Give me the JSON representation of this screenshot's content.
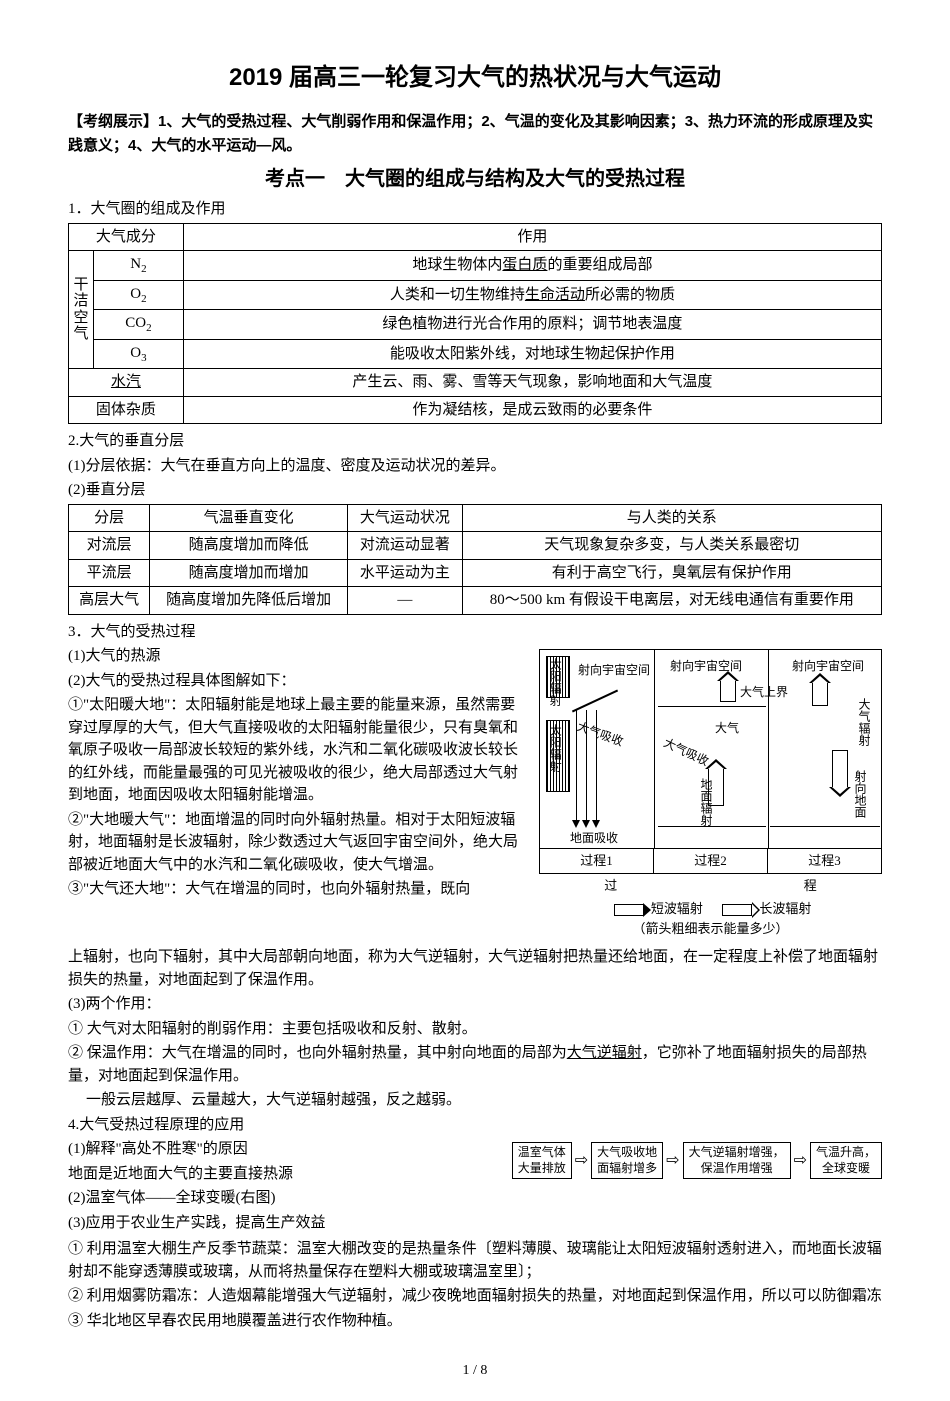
{
  "title": "2019 届高三一轮复习大气的热状况与大气运动",
  "exam_outline": "【考纲展示】1、大气的受热过程、大气削弱作用和保温作用；2、气温的变化及其影响因素；3、热力环流的形成原理及实践意义；4、大气的水平运动—风。",
  "section1_title": "考点一　大气圈的组成与结构及大气的受热过程",
  "p1": "1．大气圈的组成及作用",
  "table1": {
    "head": [
      "大气成分",
      "作用"
    ],
    "group_label": "干洁空气",
    "rows": [
      {
        "comp": "N₂",
        "use": "地球生物体内蛋白质的重要组成局部",
        "u": true
      },
      {
        "comp": "O₂",
        "use": "人类和一切生物维持生命活动所必需的物质",
        "u": true
      },
      {
        "comp": "CO₂",
        "use": "绿色植物进行光合作用的原料；调节地表温度"
      },
      {
        "comp": "O₃",
        "use": "能吸收太阳紫外线，对地球生物起保护作用"
      }
    ],
    "row5": {
      "comp": "水汽",
      "use": "产生云、雨、雾、雪等天气现象，影响地面和大气温度"
    },
    "row6": {
      "comp": "固体杂质",
      "use": "作为凝结核，是成云致雨的必要条件"
    }
  },
  "p2a": "2.大气的垂直分层",
  "p2b": "(1)分层依据：大气在垂直方向上的温度、密度及运动状况的差异。",
  "p2c": "(2)垂直分层",
  "table2": {
    "head": [
      "分层",
      "气温垂直变化",
      "大气运动状况",
      "与人类的关系"
    ],
    "rows": [
      [
        "对流层",
        "随高度增加而降低",
        "对流运动显著",
        "天气现象复杂多变，与人类关系最密切"
      ],
      [
        "平流层",
        "随高度增加而增加",
        "水平运动为主",
        "有利于高空飞行，臭氧层有保护作用"
      ],
      [
        "高层大气",
        "随高度增加先降低后增加",
        "—",
        "80～500 km 有假设干电离层，对无线电通信有重要作用"
      ]
    ]
  },
  "p3": "3．大气的受热过程",
  "p3a": "(1)大气的热源",
  "p3b": "(2)大气的受热过程具体图解如下：",
  "p3c": "①\"太阳暖大地\"：太阳辐射能是地球上最主要的能量来源，虽然需要穿过厚厚的大气，但大气直接吸收的太阳辐射能量很少，只有臭氧和氧原子吸收一局部波长较短的紫外线，水汽和二氧化碳吸收波长较长的红外线，而能量最强的可见光被吸收的很少，绝大局部透过大气射到地面，地面因吸收太阳辐射能增温。",
  "p3d": "②\"大地暖大气\"：地面增温的同时向外辐射热量。相对于太阳短波辐射，地面辐射是长波辐射，除少数透过大气返回宇宙空间外，绝大局部被近地面大气中的水汽和二氧化碳吸收，使大气增温。",
  "p3e": "③\"大气还大地\"：大气在增温的同时，也向外辐射热量，既向",
  "p3f": "上辐射，也向下辐射，其中大局部朝向地面，称为大气逆辐射，大气逆辐射把热量还给地面，在一定程度上补偿了地面辐射损失的热量，对地面起到了保温作用。",
  "p3g": "(3)两个作用：",
  "p3h": "① 大气对太阳辐射的削弱作用：主要包括吸收和反射、散射。",
  "p3i_a": "② 保温作用：大气在增温的同时，也向外辐射热量，其中射向地面的局部为",
  "p3i_u": "大气逆辐射",
  "p3i_b": "，它弥补了地面辐射损失的局部热量，对地面起到保温作用。",
  "p3j": "一般云层越厚、云量越大，大气逆辐射越强，反之越弱。",
  "p4": "4.大气受热过程原理的应用",
  "p4a": "(1)解释\"高处不胜寒\"的原因",
  "p4b": "地面是近地面大气的主要直接热源",
  "p4c": "(2)温室气体——全球变暖(右图)",
  "p4d": "(3)应用于农业生产实践，提高生产效益",
  "p4e": "① 利用温室大棚生产反季节蔬菜：温室大棚改变的是热量条件〔塑料薄膜、玻璃能让太阳短波辐射透射进入，而地面长波辐射却不能穿透薄膜或玻璃，从而将热量保存在塑料大棚或玻璃温室里〕；",
  "p4f": "② 利用烟雾防霜冻：人造烟幕能增强大气逆辐射，减少夜晚地面辐射损失的热量，对地面起到保温作用，所以可以防御霜冻",
  "p4g": "③ 华北地区早春农民用地膜覆盖进行农作物种植。",
  "diagram": {
    "proc1": "过程1",
    "proc2": "过程2",
    "proc3": "过程3",
    "legend_short": "短波辐射",
    "legend_long": "长波辐射",
    "legend_sub": "（箭头粗细表示能量多少）",
    "labels": {
      "sun": "太阳辐射",
      "to_space1": "射向宇宙空间",
      "to_space2": "射向宇宙空间",
      "to_space3": "射向宇宙空间",
      "atm_top": "大气上界",
      "atm": "大气",
      "ground_absorb": "地面吸收",
      "ground_rad": "地面辐射",
      "atm_absorb": "大气吸收",
      "atm_rad": "大气辐射",
      "to_ground": "射向地面",
      "process": "过程",
      "guo": "过"
    }
  },
  "flow": {
    "b1": "温室气体\n大量排放",
    "b2": "大气吸收地\n面辐射增多",
    "b3": "大气逆辐射增强，\n保温作用增强",
    "b4": "气温升高，\n全球变暖"
  },
  "footer": "1 / 8"
}
